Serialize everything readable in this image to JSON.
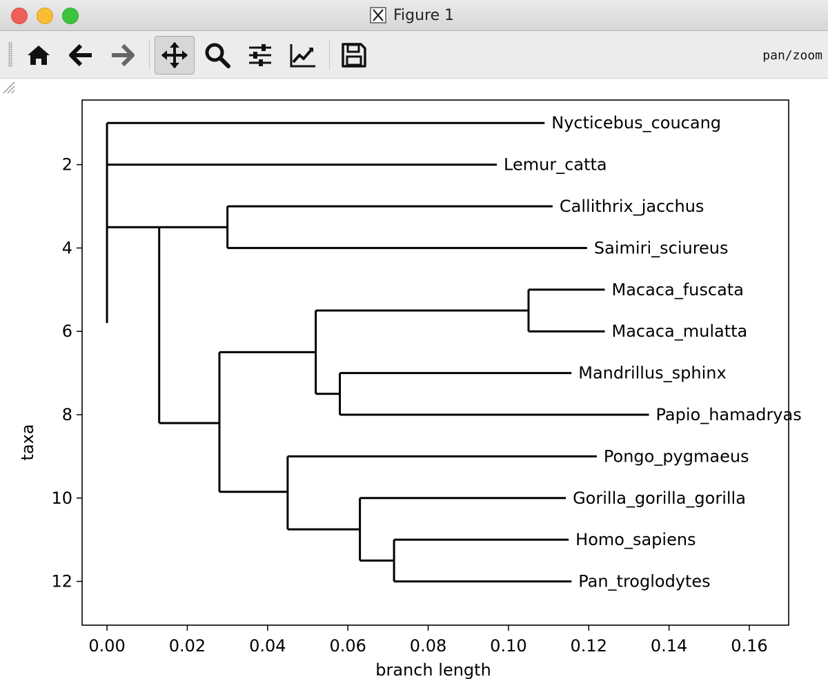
{
  "window": {
    "title": "Figure 1",
    "mode_label": "pan/zoom"
  },
  "toolbar": {
    "buttons": [
      {
        "name": "home-button",
        "icon": "home-icon"
      },
      {
        "name": "back-button",
        "icon": "arrow-left-icon"
      },
      {
        "name": "forward-button",
        "icon": "arrow-right-icon"
      },
      {
        "name": "pan-button",
        "icon": "move-icon",
        "active": true
      },
      {
        "name": "zoom-button",
        "icon": "magnifier-icon"
      },
      {
        "name": "configure-subplots-button",
        "icon": "sliders-icon"
      },
      {
        "name": "edit-axis-button",
        "icon": "line-chart-icon"
      },
      {
        "name": "save-button",
        "icon": "floppy-disk-icon"
      }
    ]
  },
  "chart_data": {
    "type": "dendrogram",
    "xlabel": "branch length",
    "ylabel": "taxa",
    "xlim": [
      -0.0062,
      0.1698
    ],
    "ylim": [
      13.05,
      0.45
    ],
    "xticks": [
      0.0,
      0.02,
      0.04,
      0.06,
      0.08,
      0.1,
      0.12,
      0.14,
      0.16
    ],
    "xtick_labels": [
      "0.00",
      "0.02",
      "0.04",
      "0.06",
      "0.08",
      "0.10",
      "0.12",
      "0.14",
      "0.16"
    ],
    "yticks": [
      2,
      4,
      6,
      8,
      10,
      12
    ],
    "ytick_labels": [
      "2",
      "4",
      "6",
      "8",
      "10",
      "12"
    ],
    "grid": false,
    "line_color": "#000000",
    "leaves": [
      {
        "name": "Nycticebus_coucang",
        "y": 1,
        "x": 0.109
      },
      {
        "name": "Lemur_catta",
        "y": 2,
        "x": 0.0971
      },
      {
        "name": "Callithrix_jacchus",
        "y": 3,
        "x": 0.111
      },
      {
        "name": "Saimiri_sciureus",
        "y": 4,
        "x": 0.1196
      },
      {
        "name": "Macaca_fuscata",
        "y": 5,
        "x": 0.124
      },
      {
        "name": "Macaca_mulatta",
        "y": 6,
        "x": 0.124
      },
      {
        "name": "Mandrillus_sphinx",
        "y": 7,
        "x": 0.1157
      },
      {
        "name": "Papio_hamadryas",
        "y": 8,
        "x": 0.135
      },
      {
        "name": "Pongo_pygmaeus",
        "y": 9,
        "x": 0.122
      },
      {
        "name": "Gorilla_gorilla_gorilla",
        "y": 10,
        "x": 0.1143
      },
      {
        "name": "Homo_sapiens",
        "y": 11,
        "x": 0.115
      },
      {
        "name": "Pan_troglodytes",
        "y": 12,
        "x": 0.1157
      }
    ],
    "internal_nodes": [
      {
        "x": 0.0,
        "y": 5.8,
        "children": [
          {
            "x": 0.109,
            "y": 1
          },
          {
            "x": 0.0971,
            "y": 2
          },
          {
            "x": 0.013,
            "y": 3.5
          }
        ]
      },
      {
        "x": 0.013,
        "y": 5.8,
        "children": [
          {
            "x": 0.03,
            "y": 3.5
          },
          {
            "x": 0.028,
            "y": 8.2
          }
        ]
      },
      {
        "x": 0.03,
        "y": 3.5,
        "children": [
          {
            "x": 0.111,
            "y": 3
          },
          {
            "x": 0.1196,
            "y": 4
          }
        ]
      },
      {
        "x": 0.028,
        "y": 8.2,
        "children": [
          {
            "x": 0.052,
            "y": 6.5
          },
          {
            "x": 0.045,
            "y": 9.85
          }
        ]
      },
      {
        "x": 0.052,
        "y": 6.5,
        "children": [
          {
            "x": 0.105,
            "y": 5.5
          },
          {
            "x": 0.058,
            "y": 7.5
          }
        ]
      },
      {
        "x": 0.105,
        "y": 5.5,
        "children": [
          {
            "x": 0.124,
            "y": 5
          },
          {
            "x": 0.124,
            "y": 6
          }
        ]
      },
      {
        "x": 0.058,
        "y": 7.5,
        "children": [
          {
            "x": 0.1157,
            "y": 7
          },
          {
            "x": 0.135,
            "y": 8
          }
        ]
      },
      {
        "x": 0.045,
        "y": 9.85,
        "children": [
          {
            "x": 0.122,
            "y": 9
          },
          {
            "x": 0.063,
            "y": 10.75
          }
        ]
      },
      {
        "x": 0.063,
        "y": 10.75,
        "children": [
          {
            "x": 0.1143,
            "y": 10
          },
          {
            "x": 0.0715,
            "y": 11.5
          }
        ]
      },
      {
        "x": 0.0715,
        "y": 11.5,
        "children": [
          {
            "x": 0.115,
            "y": 11
          },
          {
            "x": 0.1157,
            "y": 12
          }
        ]
      }
    ]
  }
}
